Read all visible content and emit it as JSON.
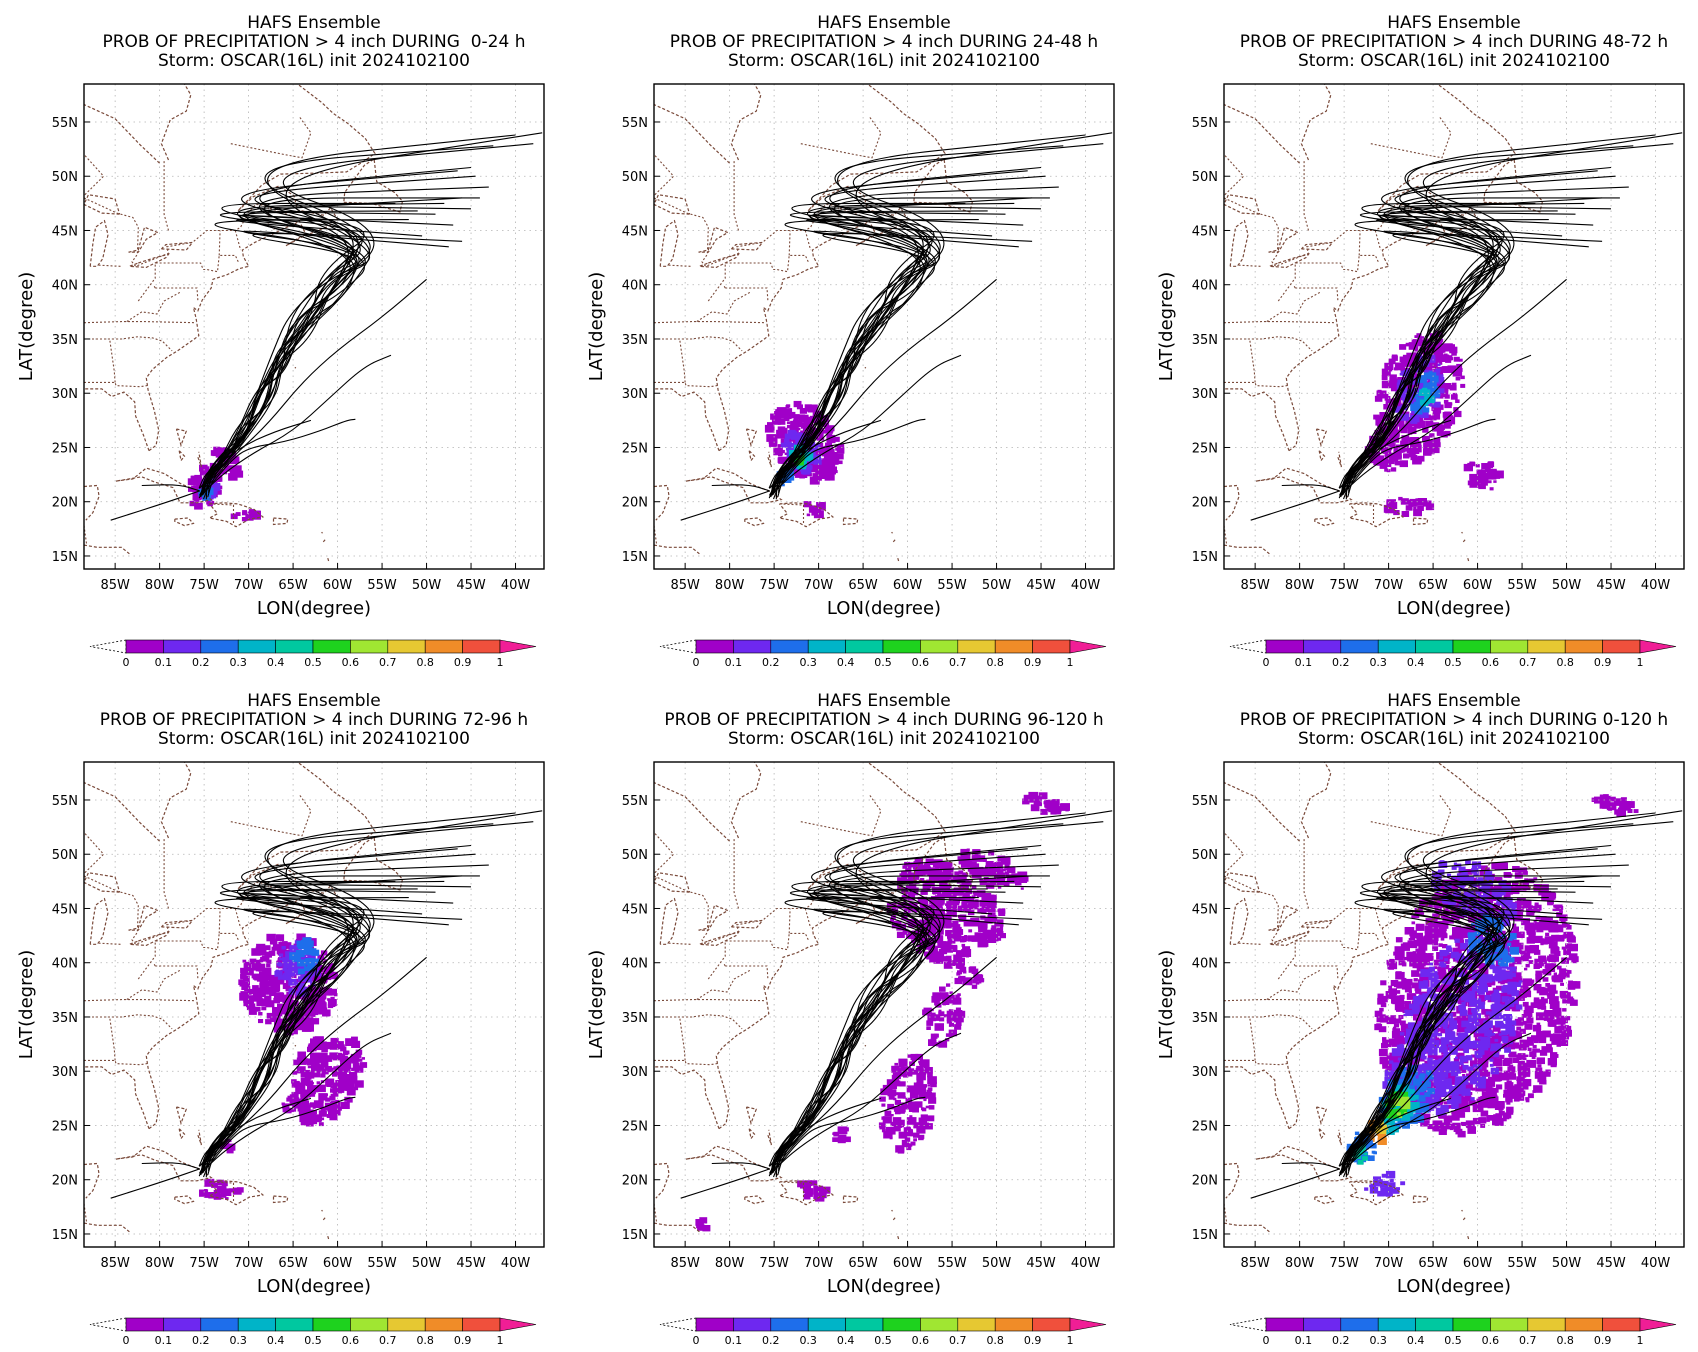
{
  "figure": {
    "title_line1": "HAFS Ensemble",
    "title_line2_prefix": "PROB OF PRECIPITATION > 4 inch DURING ",
    "title_line3": "Storm: OSCAR(16L) init 2024102100",
    "xlabel": "LON(degree)",
    "ylabel": "LAT(degree)",
    "panels": [
      {
        "id": "p1",
        "period": "0-24 h",
        "title_line2": "PROB OF PRECIPITATION > 4 inch DURING  0-24 h"
      },
      {
        "id": "p2",
        "period": "24-48 h",
        "title_line2": "PROB OF PRECIPITATION > 4 inch DURING 24-48 h"
      },
      {
        "id": "p3",
        "period": "48-72 h",
        "title_line2": "PROB OF PRECIPITATION > 4 inch DURING 48-72 h"
      },
      {
        "id": "p4",
        "period": "72-96 h",
        "title_line2": "PROB OF PRECIPITATION > 4 inch DURING 72-96 h"
      },
      {
        "id": "p5",
        "period": "96-120 h",
        "title_line2": "PROB OF PRECIPITATION > 4 inch DURING 96-120 h"
      },
      {
        "id": "p6",
        "period": "0-120 h",
        "title_line2": "PROB OF PRECIPITATION > 4 inch DURING 0-120 h"
      }
    ],
    "lon_ticks": [
      "85W",
      "80W",
      "75W",
      "70W",
      "65W",
      "60W",
      "55W",
      "50W",
      "45W",
      "40W"
    ],
    "lat_ticks": [
      "15N",
      "20N",
      "25N",
      "30N",
      "35N",
      "40N",
      "45N",
      "50N",
      "55N"
    ],
    "colorbar": {
      "labels": [
        "0",
        "0.1",
        "0.2",
        "0.3",
        "0.4",
        "0.5",
        "0.6",
        "0.7",
        "0.8",
        "0.9",
        "1"
      ],
      "colors": [
        "#a000c8",
        "#6e28f0",
        "#1e6eeb",
        "#00b4c8",
        "#00c8a0",
        "#1ed21e",
        "#a0e632",
        "#e6c832",
        "#f08c28",
        "#f0503c"
      ],
      "over_color": "#f01e96",
      "under_color": "#ffffff"
    },
    "colors": {
      "coastline": "#7a4a3a",
      "track": "#000000",
      "grid": "#b4b4b4"
    }
  }
}
